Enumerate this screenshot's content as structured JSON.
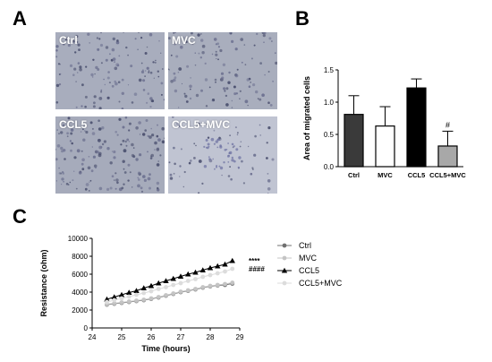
{
  "panels": {
    "a": "A",
    "b": "B",
    "c": "C"
  },
  "micrographs": [
    {
      "label": "Ctrl",
      "density": 0.75,
      "tint": "#a8adbd"
    },
    {
      "label": "MVC",
      "density": 0.7,
      "tint": "#a9aebd"
    },
    {
      "label": "CCL5",
      "density": 0.95,
      "tint": "#a6abbb"
    },
    {
      "label": "CCL5+MVC",
      "density": 0.35,
      "tint": "#c0c4d2"
    }
  ],
  "chart_data": [
    {
      "type": "bar",
      "panel": "B",
      "categories": [
        "Ctrl",
        "MVC",
        "CCL5",
        "CCL5+MVC"
      ],
      "values": [
        0.81,
        0.63,
        1.22,
        0.32
      ],
      "errors": [
        0.29,
        0.3,
        0.14,
        0.23
      ],
      "bar_colors": [
        "#3a3a3a",
        "#ffffff",
        "#000000",
        "#a8a8a8"
      ],
      "annotations": [
        {
          "category": "CCL5+MVC",
          "text": "#"
        }
      ],
      "ylabel": "Area of migrated cells",
      "ylim": [
        0,
        1.5
      ],
      "yticks": [
        "0.0",
        "0.5",
        "1.0",
        "1.5"
      ],
      "grid": false
    },
    {
      "type": "line",
      "panel": "C",
      "xlabel": "Time (hours)",
      "ylabel": "Resistance (ohm)",
      "xlim": [
        24,
        29
      ],
      "ylim": [
        0,
        10000
      ],
      "xticks": [
        "24",
        "25",
        "26",
        "27",
        "28",
        "29"
      ],
      "yticks": [
        "0",
        "2000",
        "4000",
        "6000",
        "8000",
        "10000"
      ],
      "x": [
        24.5,
        24.75,
        25.0,
        25.25,
        25.5,
        25.75,
        26.0,
        26.25,
        26.5,
        26.75,
        27.0,
        27.25,
        27.5,
        27.75,
        28.0,
        28.25,
        28.5,
        28.75
      ],
      "series": [
        {
          "name": "Ctrl",
          "color": "#707070",
          "marker": "circle",
          "values": [
            2600,
            2700,
            2800,
            2900,
            3000,
            3100,
            3250,
            3400,
            3600,
            3800,
            4000,
            4150,
            4300,
            4500,
            4650,
            4750,
            4800,
            4950
          ]
        },
        {
          "name": "MVC",
          "color": "#c4c4c4",
          "marker": "circle",
          "values": [
            2650,
            2750,
            2850,
            2950,
            3050,
            3150,
            3300,
            3450,
            3650,
            3850,
            4050,
            4200,
            4350,
            4550,
            4700,
            4800,
            4900,
            5050
          ]
        },
        {
          "name": "CCL5",
          "color": "#000000",
          "marker": "triangle",
          "values": [
            3200,
            3450,
            3700,
            3950,
            4150,
            4450,
            4700,
            5000,
            5250,
            5500,
            5750,
            6000,
            6200,
            6450,
            6700,
            6900,
            7100,
            7500
          ]
        },
        {
          "name": "CCL5+MVC",
          "color": "#dcdcdc",
          "marker": "circle",
          "values": [
            2900,
            3100,
            3300,
            3500,
            3700,
            3900,
            4100,
            4350,
            4550,
            4800,
            5000,
            5250,
            5450,
            5700,
            5900,
            6100,
            6300,
            6600
          ]
        }
      ],
      "annotations": [
        {
          "series": "CCL5",
          "text": "****"
        },
        {
          "series": "CCL5+MVC",
          "text": "####"
        }
      ],
      "legend": "right",
      "grid": false
    }
  ]
}
